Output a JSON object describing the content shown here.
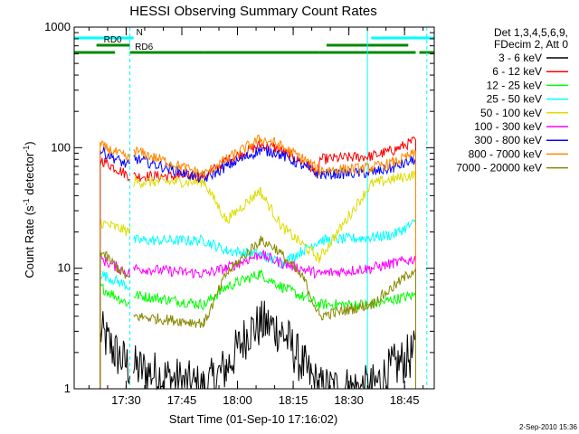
{
  "chart_data": {
    "type": "line",
    "title": "HESSI Observing Summary Count Rates",
    "xlabel": "Start Time (01-Sep-10 17:16:02)",
    "ylabel_parts": [
      "Count Rate (s",
      "-1",
      " detector",
      "-1",
      ")"
    ],
    "ylim": [
      1,
      1000
    ],
    "y_scale": "log",
    "y_ticks": [
      {
        "value": 1,
        "label": "1"
      },
      {
        "value": 10,
        "label": "10"
      },
      {
        "value": 100,
        "label": "100"
      },
      {
        "value": 1000,
        "label": "1000"
      }
    ],
    "xlim": [
      "17:16",
      "18:53"
    ],
    "x_ticks": [
      "17:30",
      "17:45",
      "18:00",
      "18:15",
      "18:30",
      "18:45"
    ],
    "grid": false,
    "legend_placement": "right",
    "legend_header": [
      "Det 1,3,4,5,6,9,",
      "FDecim 2, Att 0"
    ],
    "timestamp": "2-Sep-2010 15:36",
    "data_gaps": [
      [
        "17:16",
        "17:23"
      ],
      [
        "17:31",
        "17:32"
      ],
      [
        "18:36",
        "18:38"
      ],
      [
        "18:49",
        "18:53"
      ]
    ],
    "flags": [
      {
        "name": "N",
        "color": "#00ffff",
        "segments": [
          [
            "17:16",
            "17:32"
          ],
          [
            "18:36",
            "18:53"
          ]
        ]
      },
      {
        "name": "RD0",
        "color": "#008800",
        "segments": [
          [
            "17:22",
            "17:31"
          ],
          [
            "18:24",
            "18:46"
          ]
        ]
      },
      {
        "name": "RD6",
        "color": "#008800",
        "segments": [
          [
            "17:16",
            "17:27"
          ],
          [
            "17:31",
            "17:51"
          ],
          [
            "17:51",
            "18:22"
          ],
          [
            "18:22",
            "18:48"
          ],
          [
            "18:49",
            "18:53"
          ]
        ]
      }
    ],
    "flag_boundaries": [
      {
        "time": "17:31",
        "color": "#00ffff",
        "dashed": true
      },
      {
        "time": "18:35",
        "color": "#00ffff",
        "dashed": false
      },
      {
        "time": "18:51",
        "color": "#00ffff",
        "dashed": true
      }
    ],
    "series": [
      {
        "name": "3 - 6 keV",
        "color": "#000000",
        "points": [
          [
            "17:23",
            3
          ],
          [
            "17:27",
            2
          ],
          [
            "17:31",
            1.5
          ],
          [
            "17:32",
            1.5
          ],
          [
            "17:51",
            1
          ],
          [
            "17:57",
            1.5
          ],
          [
            "18:03",
            3
          ],
          [
            "18:07",
            3.5
          ],
          [
            "18:12",
            3
          ],
          [
            "18:18",
            1.5
          ],
          [
            "18:22",
            1
          ],
          [
            "18:36",
            1
          ],
          [
            "18:42",
            1.5
          ],
          [
            "18:48",
            2
          ]
        ]
      },
      {
        "name": "6 - 12 keV",
        "color": "#ff0000",
        "points": [
          [
            "17:23",
            80
          ],
          [
            "17:31",
            58
          ],
          [
            "17:32",
            58
          ],
          [
            "17:51",
            58
          ],
          [
            "17:57",
            78
          ],
          [
            "18:06",
            105
          ],
          [
            "18:10",
            100
          ],
          [
            "18:18",
            75
          ],
          [
            "18:22",
            60
          ],
          [
            "18:22",
            80
          ],
          [
            "18:36",
            85
          ],
          [
            "18:42",
            95
          ],
          [
            "18:48",
            115
          ]
        ]
      },
      {
        "name": "12 - 25 keV",
        "color": "#00ff00",
        "points": [
          [
            "17:23",
            7
          ],
          [
            "17:31",
            5
          ],
          [
            "17:32",
            6
          ],
          [
            "17:51",
            5
          ],
          [
            "17:57",
            7
          ],
          [
            "18:06",
            9
          ],
          [
            "18:12",
            7
          ],
          [
            "18:22",
            5
          ],
          [
            "18:36",
            5
          ],
          [
            "18:42",
            5.5
          ],
          [
            "18:48",
            6
          ]
        ]
      },
      {
        "name": "25 - 50 keV",
        "color": "#00ffff",
        "points": [
          [
            "17:23",
            9
          ],
          [
            "17:31",
            7
          ],
          [
            "17:32",
            17
          ],
          [
            "17:51",
            17
          ],
          [
            "17:57",
            14
          ],
          [
            "18:06",
            13
          ],
          [
            "18:12",
            11
          ],
          [
            "18:22",
            17
          ],
          [
            "18:36",
            18
          ],
          [
            "18:42",
            19
          ],
          [
            "18:48",
            24
          ]
        ]
      },
      {
        "name": "50 - 100 keV",
        "color": "#dddd00",
        "points": [
          [
            "17:23",
            24
          ],
          [
            "17:31",
            20
          ],
          [
            "17:32",
            52
          ],
          [
            "17:51",
            52
          ],
          [
            "17:57",
            25
          ],
          [
            "18:06",
            44
          ],
          [
            "18:12",
            22
          ],
          [
            "18:22",
            12
          ],
          [
            "18:36",
            50
          ],
          [
            "18:42",
            55
          ],
          [
            "18:48",
            60
          ]
        ]
      },
      {
        "name": "100 - 300 keV",
        "color": "#ff00ff",
        "points": [
          [
            "17:23",
            12
          ],
          [
            "17:31",
            9
          ],
          [
            "17:32",
            10
          ],
          [
            "17:51",
            9
          ],
          [
            "17:57",
            10
          ],
          [
            "18:06",
            13
          ],
          [
            "18:12",
            11
          ],
          [
            "18:22",
            9
          ],
          [
            "18:36",
            10
          ],
          [
            "18:42",
            11
          ],
          [
            "18:48",
            12
          ]
        ]
      },
      {
        "name": "300 - 800 keV",
        "color": "#0000ff",
        "points": [
          [
            "17:23",
            95
          ],
          [
            "17:31",
            70
          ],
          [
            "17:32",
            82
          ],
          [
            "17:51",
            55
          ],
          [
            "17:57",
            70
          ],
          [
            "18:06",
            95
          ],
          [
            "18:10",
            92
          ],
          [
            "18:18",
            70
          ],
          [
            "18:22",
            60
          ],
          [
            "18:36",
            62
          ],
          [
            "18:42",
            68
          ],
          [
            "18:48",
            80
          ]
        ]
      },
      {
        "name": "800 - 7000 keV",
        "color": "#ff8800",
        "points": [
          [
            "17:23",
            105
          ],
          [
            "17:31",
            80
          ],
          [
            "17:32",
            95
          ],
          [
            "17:51",
            60
          ],
          [
            "17:57",
            80
          ],
          [
            "18:06",
            118
          ],
          [
            "18:10",
            110
          ],
          [
            "18:18",
            80
          ],
          [
            "18:22",
            65
          ],
          [
            "18:36",
            68
          ],
          [
            "18:42",
            75
          ],
          [
            "18:48",
            90
          ]
        ]
      },
      {
        "name": "7000 - 20000 keV",
        "color": "#888800",
        "points": [
          [
            "17:23",
            14
          ],
          [
            "17:31",
            8
          ],
          [
            "17:32",
            4
          ],
          [
            "17:51",
            3.5
          ],
          [
            "17:57",
            9
          ],
          [
            "18:06",
            17
          ],
          [
            "18:10",
            15
          ],
          [
            "18:18",
            8
          ],
          [
            "18:22",
            4
          ],
          [
            "18:36",
            5
          ],
          [
            "18:42",
            7
          ],
          [
            "18:48",
            10
          ]
        ]
      }
    ]
  }
}
